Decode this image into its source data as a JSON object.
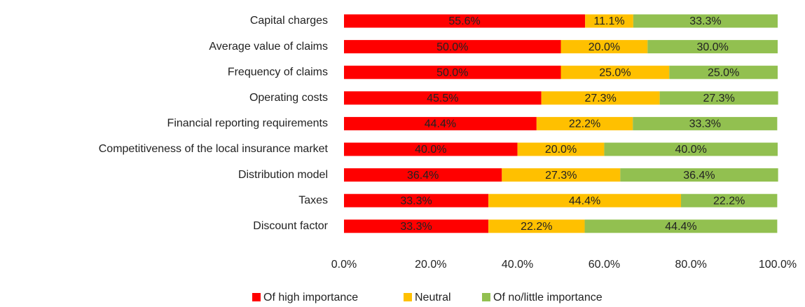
{
  "chart_data": {
    "type": "stacked_barh",
    "categories": [
      "Capital charges",
      "Average value of claims",
      "Frequency of claims",
      "Operating costs",
      "Financial reporting requirements",
      "Competitiveness of the local insurance market",
      "Distribution model",
      "Taxes",
      "Discount factor"
    ],
    "series": [
      {
        "name": "Of high importance",
        "color": "#ff0000",
        "values": [
          55.6,
          50.0,
          50.0,
          45.5,
          44.4,
          40.0,
          36.4,
          33.3,
          33.3
        ],
        "value_labels": [
          "55.6%",
          "50.0%",
          "50.0%",
          "45.5%",
          "44.4%",
          "40.0%",
          "36.4%",
          "33.3%",
          "33.3%"
        ]
      },
      {
        "name": "Neutral",
        "color": "#ffc000",
        "values": [
          11.1,
          20.0,
          25.0,
          27.3,
          22.2,
          20.0,
          27.3,
          44.4,
          22.2
        ],
        "value_labels": [
          "11.1%",
          "20.0%",
          "25.0%",
          "27.3%",
          "22.2%",
          "20.0%",
          "27.3%",
          "44.4%",
          "22.2%"
        ]
      },
      {
        "name": "Of no/little importance",
        "color": "#92c050",
        "values": [
          33.3,
          30.0,
          25.0,
          27.3,
          33.3,
          40.0,
          36.4,
          22.2,
          44.4
        ],
        "value_labels": [
          "33.3%",
          "30.0%",
          "25.0%",
          "27.3%",
          "33.3%",
          "40.0%",
          "36.4%",
          "22.2%",
          "44.4%"
        ]
      }
    ],
    "xlim": [
      0,
      100
    ],
    "xticks": [
      {
        "value": 0,
        "label": "0.0%"
      },
      {
        "value": 20,
        "label": "20.0%"
      },
      {
        "value": 40,
        "label": "40.0%"
      },
      {
        "value": 60,
        "label": "60.0%"
      },
      {
        "value": 80,
        "label": "80.0%"
      },
      {
        "value": 100,
        "label": "100.0%"
      }
    ],
    "legend": "bottom"
  }
}
